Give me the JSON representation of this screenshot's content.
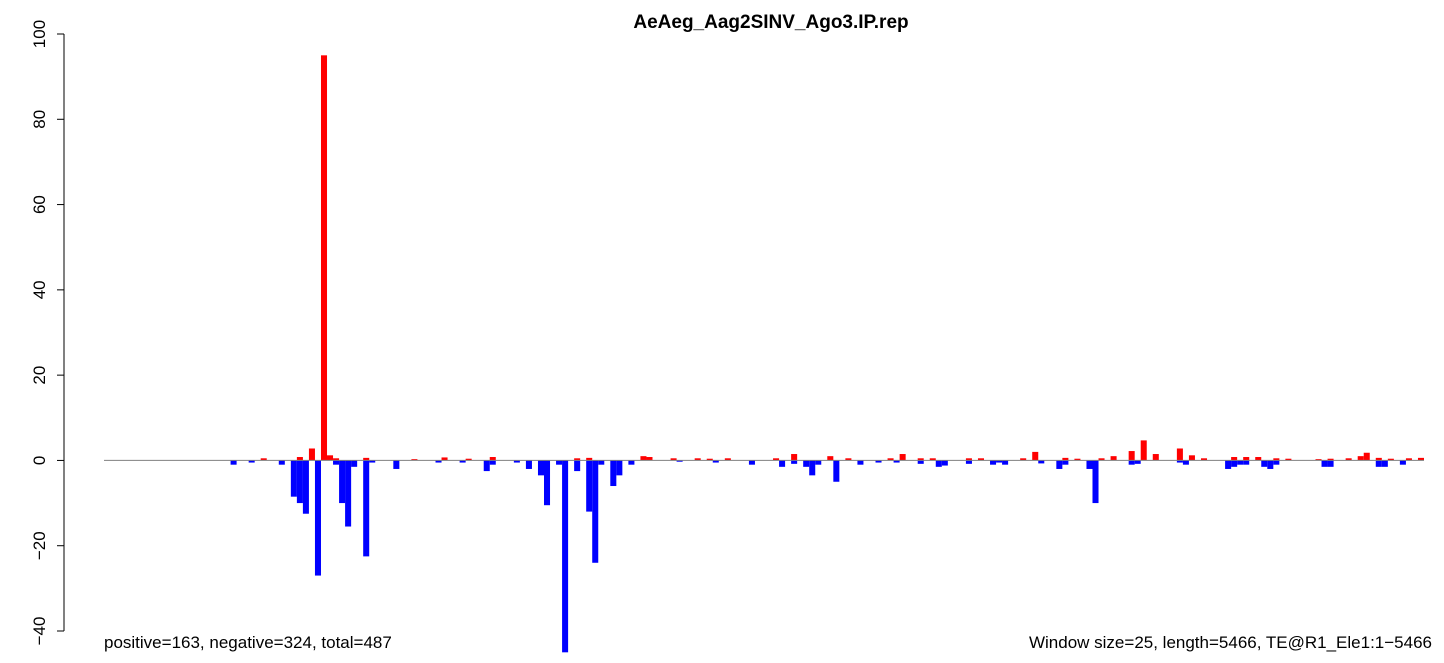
{
  "chart_data": {
    "type": "bar",
    "title": "AeAeg_Aag2SINV_Ago3.IP.rep",
    "xlabel": "",
    "ylabel": "",
    "ylim": [
      -40,
      100
    ],
    "yticks": [
      -40,
      -20,
      0,
      20,
      40,
      60,
      80,
      100
    ],
    "grid": false,
    "legend": "none",
    "window_size": 25,
    "length": 5466,
    "colors": {
      "positive": "#ff0000",
      "negative": "#0000ff",
      "baseline": "#808080"
    },
    "series": [
      {
        "name": "positive",
        "x": [
          26,
          32,
          34,
          36,
          37,
          38,
          43,
          51,
          56,
          60,
          64,
          78,
          80,
          89,
          90,
          94,
          98,
          100,
          103,
          111,
          114,
          120,
          123,
          130,
          132,
          135,
          137,
          143,
          145,
          152,
          154,
          159,
          161,
          165,
          167,
          170,
          172,
          174,
          178,
          180,
          182,
          187,
          189,
          191,
          194,
          196,
          201,
          203,
          206,
          208,
          209,
          211,
          213,
          216,
          218,
          229,
          237,
          238,
          244,
          246,
          248,
          250,
          251,
          255,
          258,
          260,
          262,
          264
        ],
        "values": [
          0.5,
          0.8,
          2.8,
          95.0,
          1.2,
          0.5,
          0.6,
          0.3,
          0.7,
          0.4,
          0.8,
          0.5,
          0.6,
          1.0,
          0.8,
          0.5,
          0.5,
          0.4,
          0.5,
          0.5,
          1.5,
          1.0,
          0.5,
          0.5,
          1.5,
          0.5,
          0.5,
          0.5,
          0.5,
          0.5,
          2.0,
          0.6,
          0.4,
          0.5,
          1.0,
          2.2,
          4.7,
          1.5,
          2.8,
          1.2,
          0.5,
          0.8,
          0.8,
          0.8,
          0.5,
          0.4,
          0.3,
          0.4,
          0.5,
          1.0,
          1.8,
          0.6,
          0.4,
          0.5,
          0.6,
          3.5,
          1.0,
          1.2,
          1.8,
          2.3,
          1.5,
          0.8,
          0.7,
          2.3,
          0.5,
          0.8,
          0.5,
          0.6
        ]
      },
      {
        "name": "negative",
        "x": [
          21,
          24,
          29,
          31,
          32,
          33,
          35,
          38,
          39,
          40,
          41,
          43,
          44,
          48,
          55,
          59,
          63,
          64,
          68,
          70,
          72,
          73,
          75,
          76,
          78,
          80,
          81,
          82,
          84,
          85,
          87,
          95,
          101,
          107,
          112,
          114,
          116,
          117,
          118,
          121,
          125,
          128,
          131,
          135,
          138,
          139,
          143,
          147,
          148,
          149,
          155,
          158,
          159,
          163,
          164,
          170,
          171,
          178,
          179,
          186,
          187,
          188,
          189,
          192,
          193,
          194,
          202,
          203,
          211,
          212,
          215,
          227,
          233,
          239,
          240,
          243,
          244,
          245,
          249,
          250,
          253,
          254,
          259,
          262
        ],
        "values": [
          -1.0,
          -0.5,
          -1.0,
          -8.5,
          -10.0,
          -12.5,
          -27.0,
          -1.0,
          -10.0,
          -15.5,
          -1.5,
          -22.5,
          -0.5,
          -2.0,
          -0.5,
          -0.5,
          -2.5,
          -1.0,
          -0.5,
          -2.0,
          -3.5,
          -10.5,
          -1.0,
          -45.0,
          -2.5,
          -12.0,
          -24.0,
          -1.0,
          -6.0,
          -3.5,
          -1.0,
          -0.3,
          -0.5,
          -1.0,
          -1.5,
          -0.8,
          -1.5,
          -3.5,
          -1.0,
          -5.0,
          -1.0,
          -0.5,
          -0.5,
          -0.8,
          -1.5,
          -1.2,
          -0.8,
          -1.0,
          -0.5,
          -1.0,
          -0.7,
          -2.0,
          -1.0,
          -2.0,
          -10.0,
          -1.0,
          -0.8,
          -0.5,
          -1.0,
          -2.0,
          -1.5,
          -1.0,
          -1.0,
          -1.5,
          -2.0,
          -1.0,
          -1.5,
          -1.5,
          -1.5,
          -1.5,
          -1.0,
          -0.5,
          -1.0,
          -3.0,
          -1.5,
          -2.0,
          -1.5,
          -1.0,
          -2.5,
          -1.5,
          -2.0,
          -1.0,
          -1.5,
          -0.5
        ]
      }
    ],
    "footer_left": "positive=163, negative=324, total=487",
    "footer_right": "Window size=25, length=5466, TE@R1_Ele1:1−5466"
  }
}
